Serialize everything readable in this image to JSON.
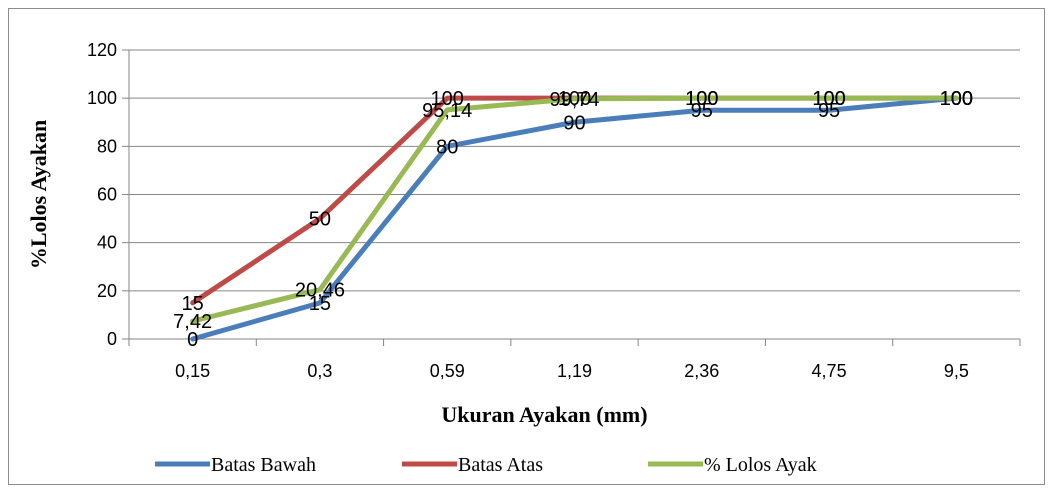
{
  "chart_data": {
    "type": "line",
    "categories": [
      "0,15",
      "0,3",
      "0,59",
      "1,19",
      "2,36",
      "4,75",
      "9,5"
    ],
    "series": [
      {
        "name": "Batas Bawah",
        "color": "#4a7ebb",
        "values": [
          0,
          15,
          80,
          90,
          95,
          95,
          100
        ],
        "labels": [
          "0",
          "15",
          "80",
          "90",
          "95",
          "95",
          "100"
        ]
      },
      {
        "name": "Batas Atas",
        "color": "#be4b48",
        "values": [
          15,
          50,
          100,
          100,
          100,
          100,
          100
        ],
        "labels": [
          "15",
          "50",
          "100",
          "100",
          "100",
          "100",
          "100"
        ]
      },
      {
        "name": "% Lolos Ayak",
        "color": "#98b954",
        "values": [
          7.42,
          20.46,
          95.14,
          99.74,
          100,
          100,
          100
        ],
        "labels": [
          "7,42",
          "20,46",
          "95,14",
          "99,74",
          "100",
          "100",
          "100"
        ]
      }
    ],
    "xlabel": "Ukuran Ayakan (mm)",
    "ylabel": "%Lolos Ayakan",
    "ylim": [
      0,
      120
    ],
    "yticks": [
      "0",
      "20",
      "40",
      "60",
      "80",
      "100",
      "120"
    ],
    "grid": true,
    "legend": "bottom"
  }
}
